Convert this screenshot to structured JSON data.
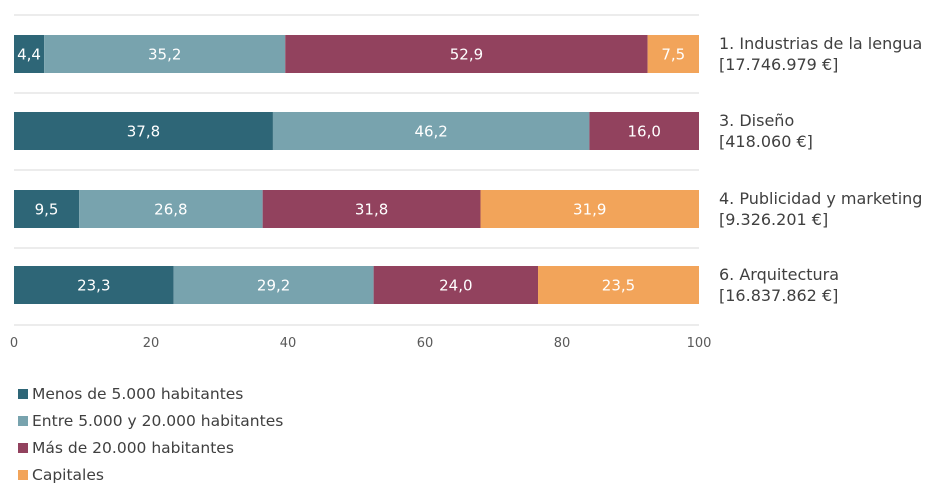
{
  "chart_data": {
    "type": "bar",
    "orientation": "horizontal",
    "stacked": true,
    "categories": [
      {
        "name": "1. Industrias de la lengua",
        "total": "[17.746.979 €]"
      },
      {
        "name": "3. Diseño",
        "total": "[418.060 €]"
      },
      {
        "name": "4. Publicidad y marketing",
        "total": "[9.326.201 €]"
      },
      {
        "name": "6. Arquitectura",
        "total": "[16.837.862 €]"
      }
    ],
    "series": [
      {
        "name": "Menos de 5.000 habitantes",
        "color": "#2e6677",
        "values": [
          4.4,
          37.8,
          9.5,
          23.3
        ],
        "labels": [
          "4,4",
          "37,8",
          "9,5",
          "23,3"
        ]
      },
      {
        "name": "Entre 5.000 y 20.000 habitantes",
        "color": "#78a3ae",
        "values": [
          35.2,
          46.2,
          26.8,
          29.2
        ],
        "labels": [
          "35,2",
          "46,2",
          "26,8",
          "29,2"
        ]
      },
      {
        "name": "Más de 20.000 habitantes",
        "color": "#92425e",
        "values": [
          52.9,
          16.0,
          31.8,
          24.0
        ],
        "labels": [
          "52,9",
          "16,0",
          "31,8",
          "24,0"
        ]
      },
      {
        "name": "Capitales",
        "color": "#f2a45a",
        "values": [
          7.5,
          0,
          31.9,
          23.5
        ],
        "labels": [
          "7,5",
          "",
          "31,9",
          "23,5"
        ]
      }
    ],
    "xlim": [
      0,
      100
    ],
    "xticks": [
      0,
      20,
      40,
      60,
      80,
      100
    ],
    "xtick_labels": [
      "0",
      "20",
      "40",
      "60",
      "80",
      "100"
    ],
    "grid": "horizontal separators",
    "legend_position": "bottom-left"
  }
}
